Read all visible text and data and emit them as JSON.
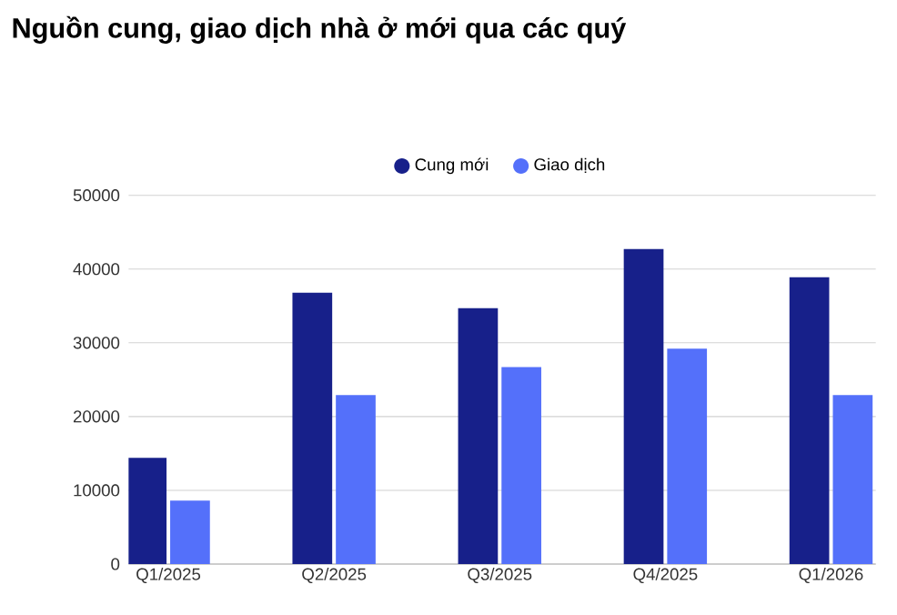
{
  "chart_data": {
    "type": "bar",
    "title": "Nguồn cung, giao dịch nhà ở mới qua các quý",
    "categories": [
      "Q1/2025",
      "Q2/2025",
      "Q3/2025",
      "Q4/2025",
      "Q1/2026"
    ],
    "series": [
      {
        "name": "Cung mới",
        "color": "#17208a",
        "values": [
          14400,
          36800,
          34700,
          42700,
          38900
        ]
      },
      {
        "name": "Giao dịch",
        "color": "#5470fa",
        "values": [
          8600,
          22900,
          26700,
          29200,
          22900
        ]
      }
    ],
    "ylim": [
      0,
      50000
    ],
    "yticks": [
      0,
      10000,
      20000,
      30000,
      40000,
      50000
    ],
    "grid": "y",
    "legend": "top"
  }
}
